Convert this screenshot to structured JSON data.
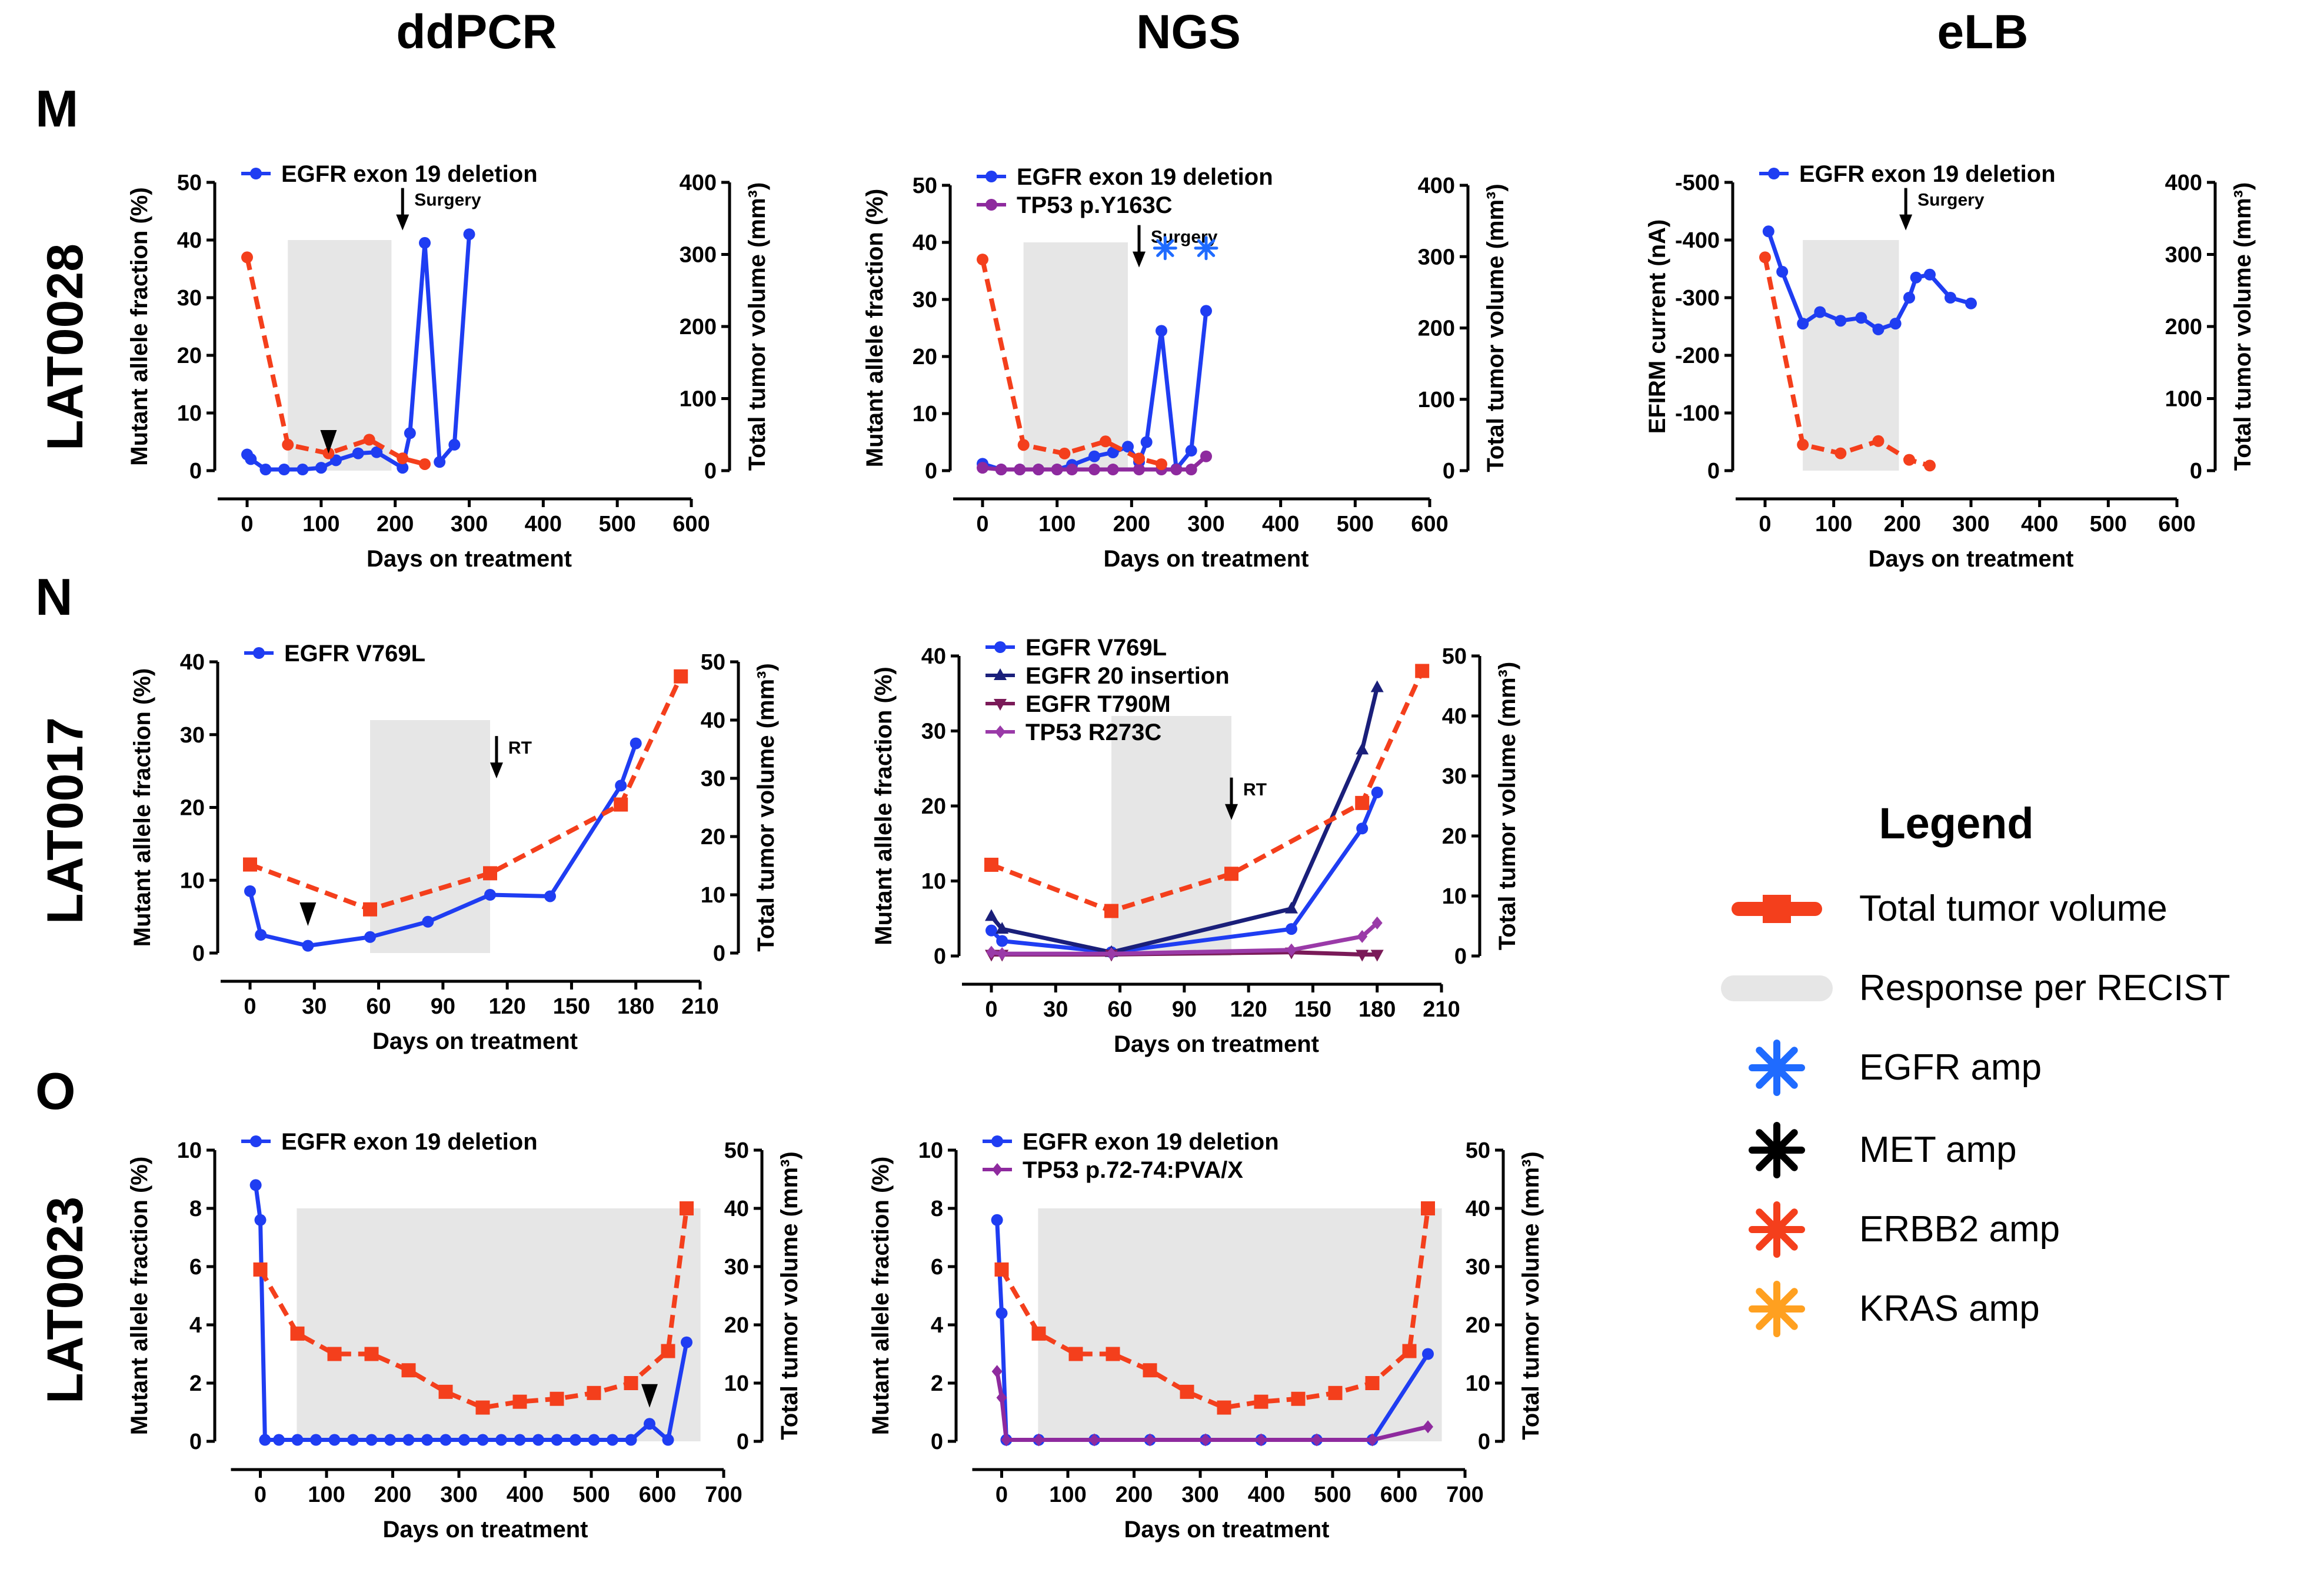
{
  "column_titles": [
    "ddPCR",
    "NGS",
    "eLB"
  ],
  "rows": [
    {
      "letter": "M",
      "id": "LAT0028"
    },
    {
      "letter": "N",
      "id": "LAT0017"
    },
    {
      "letter": "O",
      "id": "LAT0023"
    }
  ],
  "legend": {
    "title": "Legend",
    "items": [
      {
        "label": "Total tumor volume",
        "kind": "line",
        "color": "#f43f1c"
      },
      {
        "label": "Response per RECIST",
        "kind": "band",
        "color": "#e6e6e6"
      },
      {
        "label": "EGFR amp",
        "kind": "star",
        "color": "#1f6bff"
      },
      {
        "label": "MET amp",
        "kind": "star",
        "color": "#000000"
      },
      {
        "label": "ERBB2 amp",
        "kind": "star",
        "color": "#f43f1c"
      },
      {
        "label": "KRAS amp",
        "kind": "star",
        "color": "#ffa020"
      }
    ]
  },
  "chart_data": [
    {
      "type": "line",
      "panel": "M-ddPCR",
      "xlabel": "Days on treatment",
      "ylabel": "Mutant allele fraction (%)",
      "y2label": "Total tumor volume (mm³)",
      "xlim": [
        0,
        600
      ],
      "xticks": [
        0,
        100,
        200,
        300,
        400,
        500,
        600
      ],
      "ylim": [
        0,
        50
      ],
      "yticks": [
        0,
        10,
        20,
        30,
        40,
        50
      ],
      "y2lim": [
        0,
        400
      ],
      "y2ticks": [
        0,
        100,
        200,
        300,
        400
      ],
      "response": [
        55,
        195
      ],
      "series": [
        {
          "name": "EGFR exon 19 deletion",
          "axis": "left",
          "color": "#1f3df2",
          "marker": "circle",
          "dash": false,
          "legend": true,
          "x": [
            0,
            5,
            25,
            50,
            75,
            100,
            120,
            150,
            175,
            210,
            220,
            240,
            260,
            280,
            300
          ],
          "y": [
            2.8,
            2,
            0.2,
            0.2,
            0.2,
            0.5,
            1.8,
            3,
            3.2,
            0.5,
            6.5,
            39.5,
            1.5,
            4.5,
            41
          ]
        },
        {
          "name": "Total tumor volume",
          "axis": "right",
          "color": "#f43f1c",
          "marker": "circle",
          "dash": true,
          "legend": false,
          "x": [
            0,
            55,
            110,
            165,
            210,
            240
          ],
          "y": [
            296,
            36,
            24,
            43,
            17,
            9
          ]
        }
      ],
      "annotations": [
        {
          "kind": "arrow",
          "label": "Surgery",
          "x": 210,
          "y": 48
        },
        {
          "kind": "triangle",
          "x": 110,
          "y": 5.2
        }
      ]
    },
    {
      "type": "line",
      "panel": "M-NGS",
      "xlabel": "Days on treatment",
      "ylabel": "Mutant allele fraction (%)",
      "y2label": "Total tumor volume (mm³)",
      "xlim": [
        0,
        600
      ],
      "xticks": [
        0,
        100,
        200,
        300,
        400,
        500,
        600
      ],
      "ylim": [
        0,
        50
      ],
      "yticks": [
        0,
        10,
        20,
        30,
        40,
        50
      ],
      "y2lim": [
        0,
        400
      ],
      "y2ticks": [
        0,
        100,
        200,
        300,
        400
      ],
      "response": [
        55,
        195
      ],
      "series": [
        {
          "name": "EGFR exon 19 deletion",
          "axis": "left",
          "color": "#1f3df2",
          "marker": "circle",
          "dash": false,
          "legend": true,
          "x": [
            0,
            25,
            50,
            75,
            100,
            120,
            150,
            175,
            195,
            210,
            220,
            240,
            260,
            280,
            300
          ],
          "y": [
            1.2,
            0.2,
            0.2,
            0.2,
            0.2,
            1,
            2.5,
            3.2,
            4.2,
            1.5,
            5,
            24.5,
            0.3,
            3.5,
            28
          ]
        },
        {
          "name": "TP53 p.Y163C",
          "axis": "left",
          "color": "#8e2a9e",
          "marker": "circle",
          "dash": false,
          "legend": true,
          "x": [
            0,
            25,
            50,
            75,
            100,
            120,
            150,
            175,
            210,
            240,
            260,
            280,
            300
          ],
          "y": [
            0.5,
            0.2,
            0.2,
            0.2,
            0.2,
            0.2,
            0.2,
            0.2,
            0.2,
            0.2,
            0.2,
            0.2,
            2.5
          ]
        },
        {
          "name": "Total tumor volume",
          "axis": "right",
          "color": "#f43f1c",
          "marker": "circle",
          "dash": true,
          "legend": false,
          "x": [
            0,
            55,
            110,
            165,
            210,
            240
          ],
          "y": [
            296,
            36,
            24,
            41,
            17,
            9
          ]
        }
      ],
      "annotations": [
        {
          "kind": "arrow",
          "label": "Surgery",
          "x": 210,
          "y": 42
        },
        {
          "kind": "star",
          "color": "#1f6bff",
          "x": 245,
          "y": 39
        },
        {
          "kind": "star",
          "color": "#1f6bff",
          "x": 300,
          "y": 39
        }
      ]
    },
    {
      "type": "line",
      "panel": "M-eLB",
      "xlabel": "Days on treatment",
      "ylabel": "EFIRM current (nA)",
      "y2label": "Total tumor volume (mm³)",
      "xlim": [
        0,
        600
      ],
      "xticks": [
        0,
        100,
        200,
        300,
        400,
        500,
        600
      ],
      "ylim": [
        0,
        -500
      ],
      "yticks": [
        0,
        -100,
        -200,
        -300,
        -400,
        -500
      ],
      "y2lim": [
        0,
        400
      ],
      "y2ticks": [
        0,
        100,
        200,
        300,
        400
      ],
      "response": [
        55,
        195
      ],
      "series": [
        {
          "name": "EGFR exon 19 deletion",
          "axis": "left",
          "color": "#1f3df2",
          "marker": "circle",
          "dash": false,
          "legend": true,
          "x": [
            5,
            25,
            55,
            80,
            110,
            140,
            165,
            190,
            210,
            220,
            240,
            270,
            300
          ],
          "y": [
            -415,
            -345,
            -255,
            -275,
            -260,
            -265,
            -245,
            -255,
            -300,
            -335,
            -340,
            -300,
            -290
          ]
        },
        {
          "name": "Total tumor volume",
          "axis": "right",
          "color": "#f43f1c",
          "marker": "circle",
          "dash": true,
          "legend": false,
          "x": [
            0,
            55,
            110,
            165,
            210,
            240
          ],
          "y": [
            296,
            36,
            24,
            41,
            15,
            7
          ]
        }
      ],
      "annotations": [
        {
          "kind": "arrow",
          "label": "Surgery",
          "x": 205,
          "y": -480
        }
      ]
    },
    {
      "type": "line",
      "panel": "N-ddPCR",
      "xlabel": "Days on treatment",
      "ylabel": "Mutant allele fraction (%)",
      "y2label": "Total tumor volume (mm³)",
      "xlim": [
        0,
        210
      ],
      "xticks": [
        0,
        30,
        60,
        90,
        120,
        150,
        180,
        210
      ],
      "ylim": [
        0,
        40
      ],
      "yticks": [
        0,
        10,
        20,
        30,
        40
      ],
      "y2lim": [
        0,
        50
      ],
      "y2ticks": [
        0,
        10,
        20,
        30,
        40,
        50
      ],
      "response": [
        56,
        112
      ],
      "series": [
        {
          "name": "EGFR V769L",
          "axis": "left",
          "color": "#1f3df2",
          "marker": "circle",
          "dash": false,
          "legend": true,
          "x": [
            0,
            5,
            27,
            56,
            83,
            112,
            140,
            173,
            180
          ],
          "y": [
            8.5,
            2.5,
            1,
            2.2,
            4.3,
            8,
            7.8,
            23,
            28.8
          ]
        },
        {
          "name": "Total tumor volume",
          "axis": "right",
          "color": "#f43f1c",
          "marker": "square",
          "dash": true,
          "legend": false,
          "x": [
            0,
            56,
            112,
            173,
            201
          ],
          "y": [
            15.2,
            7.5,
            13.7,
            25.5,
            47.5
          ]
        }
      ],
      "annotations": [
        {
          "kind": "arrow",
          "label": "RT",
          "x": 115,
          "y": 29
        },
        {
          "kind": "triangle",
          "x": 27,
          "y": 5.5
        }
      ]
    },
    {
      "type": "line",
      "panel": "N-NGS",
      "xlabel": "Days on treatment",
      "ylabel": "Mutant allele fraction (%)",
      "y2label": "Total tumor volume (mm³)",
      "xlim": [
        0,
        210
      ],
      "xticks": [
        0,
        30,
        60,
        90,
        120,
        150,
        180,
        210
      ],
      "ylim": [
        0,
        40
      ],
      "yticks": [
        0,
        10,
        20,
        30,
        40
      ],
      "y2lim": [
        0,
        50
      ],
      "y2ticks": [
        0,
        10,
        20,
        30,
        40,
        50
      ],
      "response": [
        56,
        112
      ],
      "series": [
        {
          "name": "EGFR V769L",
          "axis": "left",
          "color": "#1f3df2",
          "marker": "circle",
          "dash": false,
          "legend": true,
          "x": [
            0,
            5,
            56,
            140,
            173,
            180
          ],
          "y": [
            3.4,
            2,
            0.5,
            3.6,
            17,
            21.8
          ]
        },
        {
          "name": "EGFR 20 insertion",
          "axis": "left",
          "color": "#1a1f7a",
          "marker": "triangle-up",
          "dash": false,
          "legend": true,
          "x": [
            0,
            5,
            56,
            140,
            173,
            180
          ],
          "y": [
            5.3,
            3.6,
            0.5,
            6.3,
            27.5,
            35.8
          ]
        },
        {
          "name": "EGFR T790M",
          "axis": "left",
          "color": "#7a1a58",
          "marker": "triangle-down",
          "dash": false,
          "legend": true,
          "x": [
            0,
            5,
            56,
            140,
            173,
            180
          ],
          "y": [
            0.2,
            0.2,
            0.2,
            0.5,
            0.2,
            0.2
          ]
        },
        {
          "name": "TP53 R273C",
          "axis": "left",
          "color": "#9a3aa8",
          "marker": "diamond",
          "dash": false,
          "legend": true,
          "x": [
            0,
            5,
            56,
            140,
            173,
            180
          ],
          "y": [
            0.5,
            0.3,
            0.3,
            0.8,
            2.6,
            4.4
          ]
        },
        {
          "name": "Total tumor volume",
          "axis": "right",
          "color": "#f43f1c",
          "marker": "square",
          "dash": true,
          "legend": false,
          "x": [
            0,
            56,
            112,
            173,
            201
          ],
          "y": [
            15.2,
            7.5,
            13.7,
            25.5,
            47.5
          ]
        }
      ],
      "annotations": [
        {
          "kind": "arrow",
          "label": "RT",
          "x": 112,
          "y": 23
        }
      ]
    },
    {
      "type": "line",
      "panel": "O-ddPCR",
      "xlabel": "Days on treatment",
      "ylabel": "Mutant allele fraction (%)",
      "y2label": "Total tumor volume (mm³)",
      "xlim": [
        -20,
        700
      ],
      "xticks": [
        0,
        100,
        200,
        300,
        400,
        500,
        600,
        700
      ],
      "ylim": [
        0,
        10
      ],
      "yticks": [
        0,
        2,
        4,
        6,
        8,
        10
      ],
      "y2lim": [
        0,
        50
      ],
      "y2ticks": [
        0,
        10,
        20,
        30,
        40,
        50
      ],
      "response": [
        55,
        665
      ],
      "series": [
        {
          "name": "EGFR exon 19 deletion",
          "axis": "left",
          "color": "#1f3df2",
          "marker": "circle",
          "dash": false,
          "legend": true,
          "x": [
            -7,
            0,
            7,
            28,
            56,
            84,
            112,
            140,
            168,
            196,
            224,
            252,
            280,
            308,
            336,
            364,
            392,
            420,
            448,
            476,
            504,
            532,
            560,
            588,
            616,
            644
          ],
          "y": [
            8.8,
            7.6,
            0.05,
            0.05,
            0.05,
            0.05,
            0.05,
            0.05,
            0.05,
            0.05,
            0.05,
            0.05,
            0.05,
            0.05,
            0.05,
            0.05,
            0.05,
            0.05,
            0.05,
            0.05,
            0.05,
            0.05,
            0.05,
            0.6,
            0.05,
            3.4
          ]
        },
        {
          "name": "Total tumor volume",
          "axis": "right",
          "color": "#f43f1c",
          "marker": "square",
          "dash": true,
          "legend": false,
          "x": [
            0,
            56,
            112,
            168,
            224,
            280,
            336,
            392,
            448,
            504,
            560,
            616,
            644
          ],
          "y": [
            29.5,
            18.5,
            15,
            15,
            12.2,
            8.5,
            5.8,
            6.8,
            7.3,
            8.3,
            10,
            15.5,
            40
          ]
        }
      ],
      "annotations": [
        {
          "kind": "triangle",
          "x": 588,
          "y": 1.6
        }
      ]
    },
    {
      "type": "line",
      "panel": "O-NGS",
      "xlabel": "Days on treatment",
      "ylabel": "Mutant allele fraction (%)",
      "y2label": "Total tumor volume (mm³)",
      "xlim": [
        -20,
        700
      ],
      "xticks": [
        0,
        100,
        200,
        300,
        400,
        500,
        600,
        700
      ],
      "ylim": [
        0,
        10
      ],
      "yticks": [
        0,
        2,
        4,
        6,
        8,
        10
      ],
      "y2lim": [
        0,
        50
      ],
      "y2ticks": [
        0,
        10,
        20,
        30,
        40,
        50
      ],
      "response": [
        55,
        665
      ],
      "series": [
        {
          "name": "EGFR exon 19 deletion",
          "axis": "left",
          "color": "#1f3df2",
          "marker": "circle",
          "dash": false,
          "legend": true,
          "x": [
            -7,
            0,
            7,
            56,
            140,
            224,
            308,
            392,
            476,
            560,
            644
          ],
          "y": [
            7.6,
            4.4,
            0.05,
            0.05,
            0.05,
            0.05,
            0.05,
            0.05,
            0.05,
            0.05,
            3
          ]
        },
        {
          "name": "TP53 p.72-74:PVA/X",
          "axis": "left",
          "color": "#8e2a9e",
          "marker": "diamond",
          "dash": false,
          "legend": true,
          "x": [
            -7,
            0,
            7,
            56,
            140,
            224,
            308,
            392,
            476,
            560,
            644
          ],
          "y": [
            2.4,
            1.5,
            0.05,
            0.05,
            0.05,
            0.05,
            0.05,
            0.05,
            0.05,
            0.05,
            0.5
          ]
        },
        {
          "name": "Total tumor volume",
          "axis": "right",
          "color": "#f43f1c",
          "marker": "square",
          "dash": true,
          "legend": false,
          "x": [
            0,
            56,
            112,
            168,
            224,
            280,
            336,
            392,
            448,
            504,
            560,
            616,
            644
          ],
          "y": [
            29.5,
            18.5,
            15,
            15,
            12.2,
            8.5,
            5.8,
            6.8,
            7.3,
            8.3,
            10,
            15.5,
            40
          ]
        }
      ],
      "annotations": []
    }
  ]
}
